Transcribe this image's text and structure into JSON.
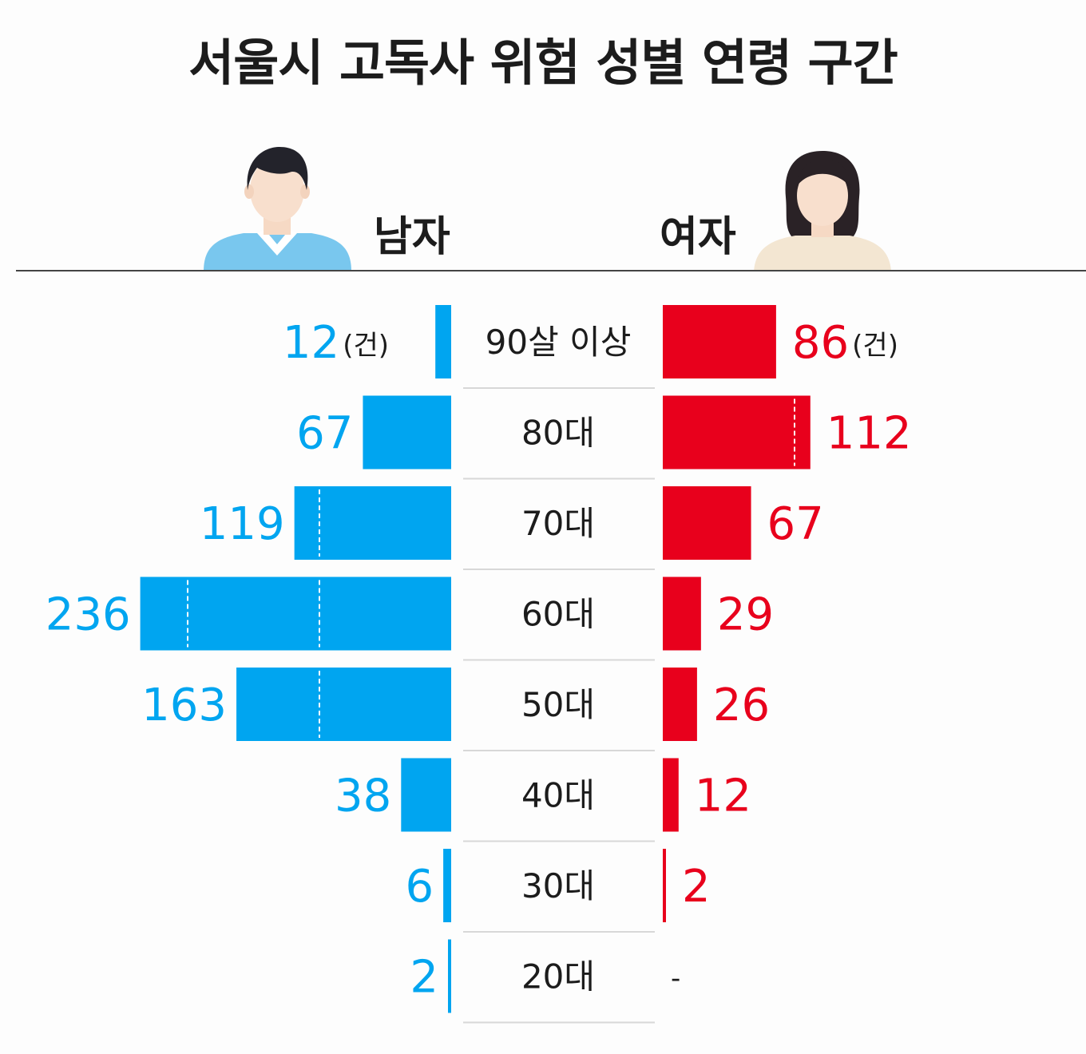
{
  "title": "서울시 고독사 위험 성별 연령 구간",
  "legend": {
    "male": "남자",
    "female": "여자"
  },
  "colors": {
    "male": "#00a5f0",
    "female": "#e8001c",
    "text": "#1c1c1c",
    "male_shirt": "#79c7ee",
    "female_shirt": "#f3e6d2"
  },
  "icons": {
    "male": "man-avatar-icon",
    "female": "woman-avatar-icon"
  },
  "unit": "(건)",
  "female_missing_label": "-",
  "chart_data": {
    "type": "bar",
    "orientation": "horizontal-butterfly",
    "title": "서울시 고독사 위험 성별 연령 구간",
    "categories": [
      "90살 이상",
      "80대",
      "70대",
      "60대",
      "50대",
      "40대",
      "30대",
      "20대"
    ],
    "series": [
      {
        "name": "남자",
        "values": [
          12,
          67,
          119,
          236,
          163,
          38,
          6,
          2
        ]
      },
      {
        "name": "여자",
        "values": [
          86,
          112,
          67,
          29,
          26,
          12,
          2,
          null
        ]
      }
    ],
    "unit": "(건)",
    "grid": false
  }
}
